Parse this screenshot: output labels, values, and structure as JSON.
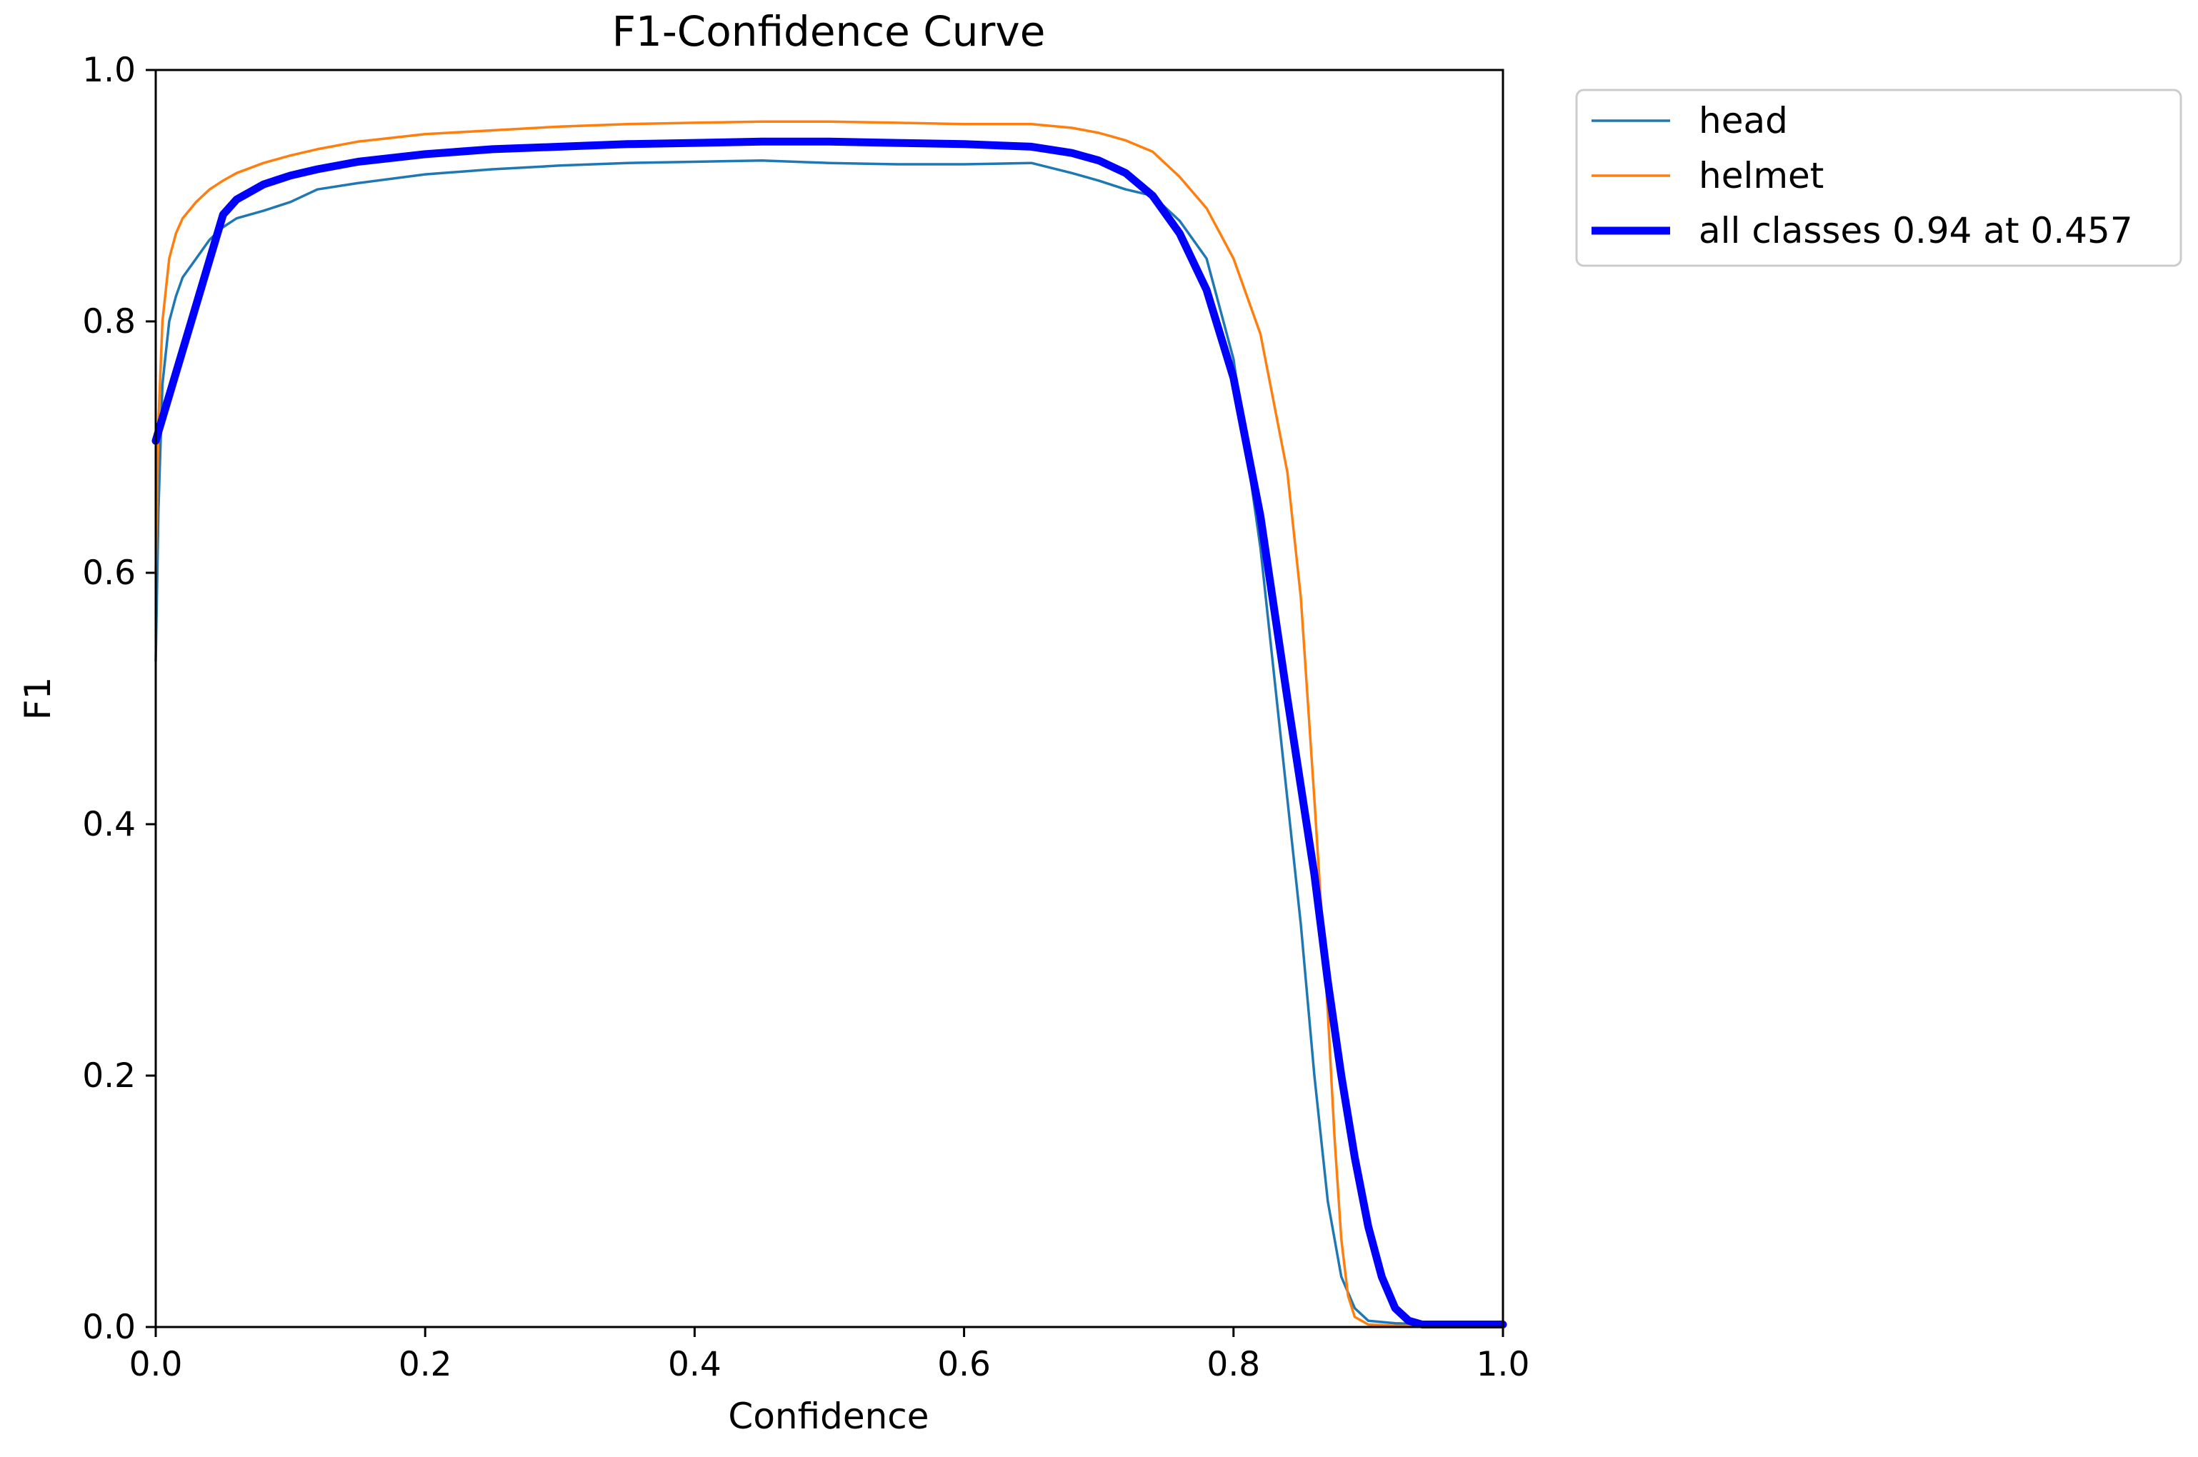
{
  "chart_data": {
    "type": "line",
    "title": "F1-Confidence Curve",
    "xlabel": "Confidence",
    "ylabel": "F1",
    "xlim": [
      0.0,
      1.0
    ],
    "ylim": [
      0.0,
      1.0
    ],
    "grid": false,
    "legend_position": "outside-top-right",
    "x_ticks": [
      "0.0",
      "0.2",
      "0.4",
      "0.6",
      "0.8",
      "1.0"
    ],
    "y_ticks": [
      "0.0",
      "0.2",
      "0.4",
      "0.6",
      "0.8",
      "1.0"
    ],
    "series": [
      {
        "name": "head",
        "color": "#1f77b4",
        "x": [
          0.0,
          0.002,
          0.005,
          0.01,
          0.015,
          0.02,
          0.03,
          0.04,
          0.05,
          0.06,
          0.08,
          0.1,
          0.12,
          0.15,
          0.2,
          0.25,
          0.3,
          0.35,
          0.4,
          0.45,
          0.5,
          0.55,
          0.6,
          0.65,
          0.68,
          0.7,
          0.72,
          0.74,
          0.76,
          0.78,
          0.8,
          0.82,
          0.84,
          0.85,
          0.86,
          0.87,
          0.88,
          0.89,
          0.9,
          0.92,
          0.95,
          1.0
        ],
        "y": [
          0.53,
          0.65,
          0.75,
          0.8,
          0.82,
          0.835,
          0.85,
          0.865,
          0.875,
          0.882,
          0.888,
          0.895,
          0.905,
          0.91,
          0.917,
          0.921,
          0.924,
          0.926,
          0.927,
          0.928,
          0.926,
          0.925,
          0.925,
          0.926,
          0.918,
          0.912,
          0.905,
          0.9,
          0.88,
          0.85,
          0.77,
          0.62,
          0.42,
          0.32,
          0.2,
          0.1,
          0.04,
          0.015,
          0.005,
          0.003,
          0.002,
          0.002
        ]
      },
      {
        "name": "helmet",
        "color": "#ff7f0e",
        "x": [
          0.0,
          0.002,
          0.005,
          0.01,
          0.015,
          0.02,
          0.03,
          0.04,
          0.05,
          0.06,
          0.08,
          0.1,
          0.12,
          0.15,
          0.2,
          0.25,
          0.3,
          0.35,
          0.4,
          0.45,
          0.5,
          0.55,
          0.6,
          0.65,
          0.68,
          0.7,
          0.72,
          0.74,
          0.76,
          0.78,
          0.8,
          0.82,
          0.84,
          0.85,
          0.86,
          0.87,
          0.875,
          0.88,
          0.885,
          0.89,
          0.9,
          0.92,
          1.0
        ],
        "y": [
          0.6,
          0.72,
          0.8,
          0.85,
          0.87,
          0.882,
          0.895,
          0.905,
          0.912,
          0.918,
          0.926,
          0.932,
          0.937,
          0.943,
          0.949,
          0.952,
          0.955,
          0.957,
          0.958,
          0.959,
          0.959,
          0.958,
          0.957,
          0.957,
          0.954,
          0.95,
          0.944,
          0.935,
          0.915,
          0.89,
          0.85,
          0.79,
          0.68,
          0.58,
          0.42,
          0.25,
          0.15,
          0.07,
          0.025,
          0.008,
          0.002,
          0.001,
          0.001
        ]
      },
      {
        "name": "all classes 0.94 at 0.457",
        "color": "#0000ff",
        "x": [
          0.0,
          0.05,
          0.06,
          0.08,
          0.1,
          0.12,
          0.15,
          0.2,
          0.25,
          0.3,
          0.35,
          0.4,
          0.45,
          0.5,
          0.55,
          0.6,
          0.65,
          0.68,
          0.7,
          0.72,
          0.74,
          0.76,
          0.78,
          0.8,
          0.82,
          0.84,
          0.86,
          0.87,
          0.88,
          0.89,
          0.9,
          0.91,
          0.92,
          0.93,
          0.94,
          0.95,
          1.0
        ],
        "y": [
          0.705,
          0.885,
          0.897,
          0.909,
          0.916,
          0.921,
          0.927,
          0.933,
          0.937,
          0.939,
          0.941,
          0.942,
          0.943,
          0.943,
          0.942,
          0.941,
          0.939,
          0.934,
          0.928,
          0.918,
          0.9,
          0.87,
          0.825,
          0.755,
          0.645,
          0.5,
          0.36,
          0.275,
          0.2,
          0.135,
          0.08,
          0.04,
          0.015,
          0.005,
          0.002,
          0.002,
          0.002
        ]
      }
    ]
  }
}
